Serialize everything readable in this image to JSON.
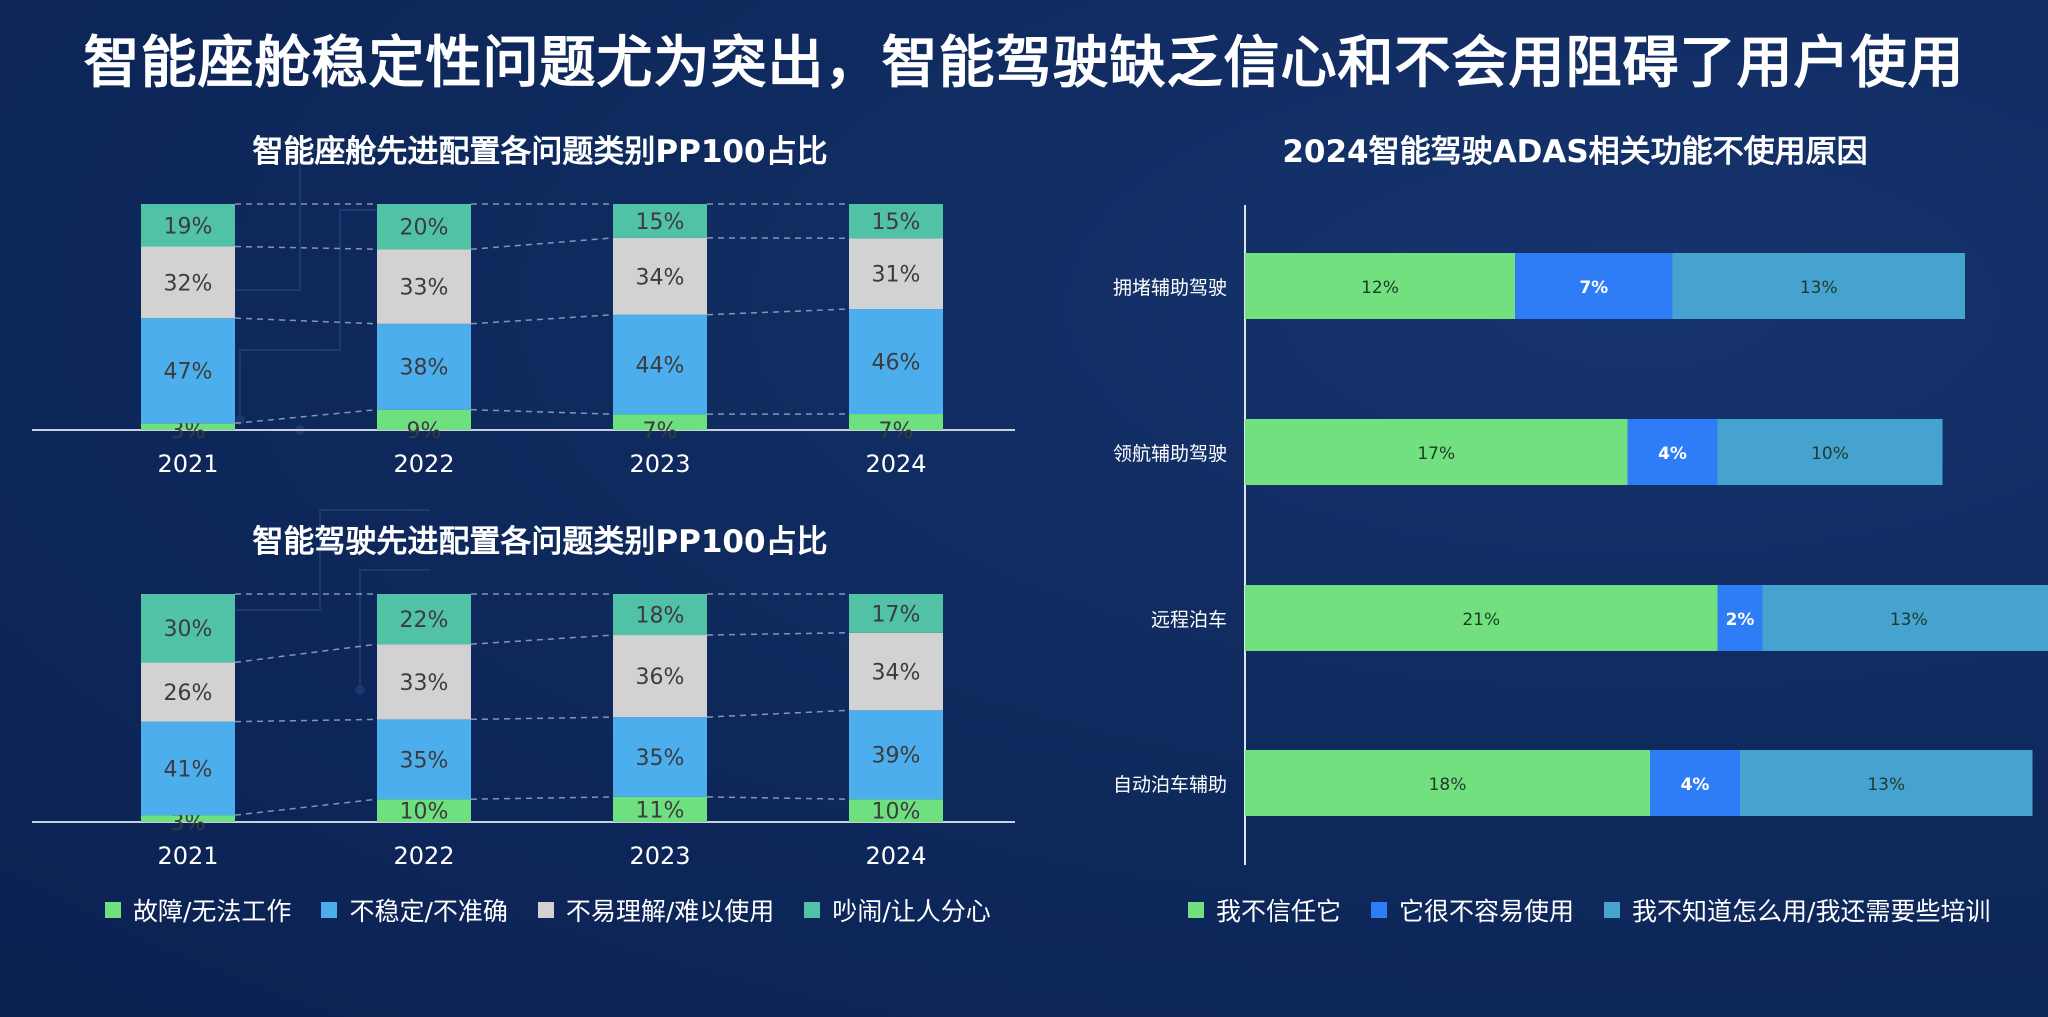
{
  "main_title": "智能座舱稳定性问题尤为突出，智能驾驶缺乏信心和不会用阻碍了用户使用",
  "colors": {
    "failure": "#6fe07f",
    "unstable": "#4daeee",
    "hard_to_use": "#d2d2d2",
    "noisy": "#52c2a6",
    "no_trust": "#72e07f",
    "not_easy": "#2e7cf6",
    "dont_know": "#46a3d0"
  },
  "left_legend": [
    {
      "label": "故障/无法工作",
      "color": "#6fe07f"
    },
    {
      "label": "不稳定/不准确",
      "color": "#4daeee"
    },
    {
      "label": "不易理解/难以使用",
      "color": "#d2d2d2"
    },
    {
      "label": "吵闹/让人分心",
      "color": "#52c2a6"
    }
  ],
  "right_legend": [
    {
      "label": "我不信任它",
      "color": "#72e07f"
    },
    {
      "label": "它很不容易使用",
      "color": "#2e7cf6"
    },
    {
      "label": "我不知道怎么用/我还需要些培训",
      "color": "#46a3d0"
    }
  ],
  "chart_data": [
    {
      "type": "bar",
      "stacked": true,
      "title": "智能座舱先进配置各问题类别PP100占比",
      "categories": [
        "2021",
        "2022",
        "2023",
        "2024"
      ],
      "series": [
        {
          "name": "故障/无法工作",
          "values": [
            3,
            9,
            7,
            7
          ],
          "labels": [
            "3%",
            "9%",
            "7%",
            "7%"
          ]
        },
        {
          "name": "不稳定/不准确",
          "values": [
            47,
            38,
            44,
            46
          ],
          "labels": [
            "47%",
            "38%",
            "44%",
            "46%"
          ]
        },
        {
          "name": "不易理解/难以使用",
          "values": [
            32,
            33,
            34,
            31
          ],
          "labels": [
            "32%",
            "33%",
            "34%",
            "31%"
          ]
        },
        {
          "name": "吵闹/让人分心",
          "values": [
            19,
            20,
            15,
            15
          ],
          "labels": [
            "19%",
            "20%",
            "15%",
            "15%"
          ]
        }
      ]
    },
    {
      "type": "bar",
      "stacked": true,
      "title": "智能驾驶先进配置各问题类别PP100占比",
      "categories": [
        "2021",
        "2022",
        "2023",
        "2024"
      ],
      "series": [
        {
          "name": "故障/无法工作",
          "values": [
            3,
            10,
            11,
            10
          ],
          "labels": [
            "3%",
            "10%",
            "11%",
            "10%"
          ]
        },
        {
          "name": "不稳定/不准确",
          "values": [
            41,
            35,
            35,
            39
          ],
          "labels": [
            "41%",
            "35%",
            "35%",
            "39%"
          ]
        },
        {
          "name": "不易理解/难以使用",
          "values": [
            26,
            33,
            36,
            34
          ],
          "labels": [
            "26%",
            "33%",
            "36%",
            "34%"
          ]
        },
        {
          "name": "吵闹/让人分心",
          "values": [
            30,
            22,
            18,
            17
          ],
          "labels": [
            "30%",
            "22%",
            "18%",
            "17%"
          ]
        }
      ]
    },
    {
      "type": "bar",
      "orientation": "horizontal",
      "stacked": true,
      "title": "2024智能驾驶ADAS相关功能不使用原因",
      "categories": [
        "拥堵辅助驾驶",
        "领航辅助驾驶",
        "远程泊车",
        "自动泊车辅助"
      ],
      "series": [
        {
          "name": "我不信任它",
          "values": [
            12,
            17,
            21,
            18
          ],
          "labels": [
            "12%",
            "17%",
            "21%",
            "18%"
          ]
        },
        {
          "name": "它很不容易使用",
          "values": [
            7,
            4,
            2,
            4
          ],
          "labels": [
            "7%",
            "4%",
            "2%",
            "4%"
          ]
        },
        {
          "name": "我不知道怎么用/我还需要些培训",
          "values": [
            13,
            10,
            13,
            13
          ],
          "labels": [
            "13%",
            "10%",
            "13%",
            "13%"
          ]
        }
      ]
    }
  ]
}
